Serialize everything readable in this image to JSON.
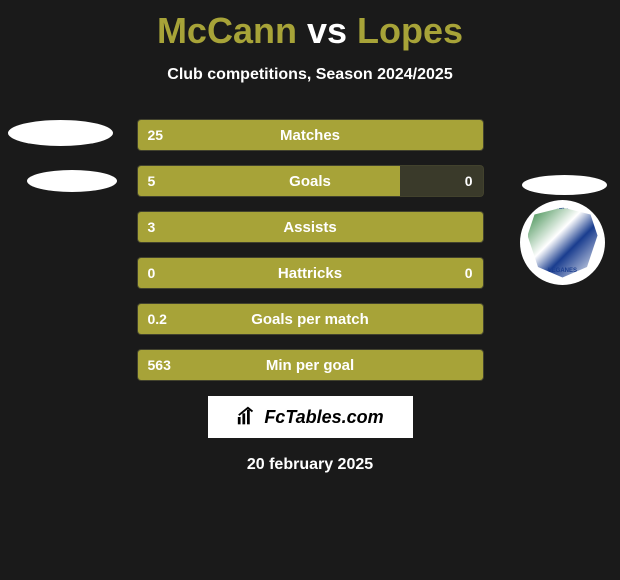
{
  "title_parts": {
    "p1": "McCann",
    "vs": "vs",
    "p2": "Lopes"
  },
  "title_colors": {
    "p1": "#a7a338",
    "vs": "#ffffff",
    "p2": "#a7a338"
  },
  "subtitle": "Club competitions, Season 2024/2025",
  "bar_color": "#a7a338",
  "bar_bg": "#3a3a2a",
  "rows": [
    {
      "label": "Matches",
      "left": "25",
      "right": "",
      "left_pct": 100,
      "right_pct": 0
    },
    {
      "label": "Goals",
      "left": "5",
      "right": "0",
      "left_pct": 76,
      "right_pct": 0
    },
    {
      "label": "Assists",
      "left": "3",
      "right": "",
      "left_pct": 100,
      "right_pct": 0
    },
    {
      "label": "Hattricks",
      "left": "0",
      "right": "0",
      "left_pct": 100,
      "right_pct": 0
    },
    {
      "label": "Goals per match",
      "left": "0.2",
      "right": "",
      "left_pct": 100,
      "right_pct": 0
    },
    {
      "label": "Min per goal",
      "left": "563",
      "right": "",
      "left_pct": 100,
      "right_pct": 0
    }
  ],
  "shield": {
    "top_text": "CLUB DEPORTIVO",
    "bottom_text": "LEGANES"
  },
  "footer_brand": "FcTables.com",
  "footer_date": "20 february 2025"
}
